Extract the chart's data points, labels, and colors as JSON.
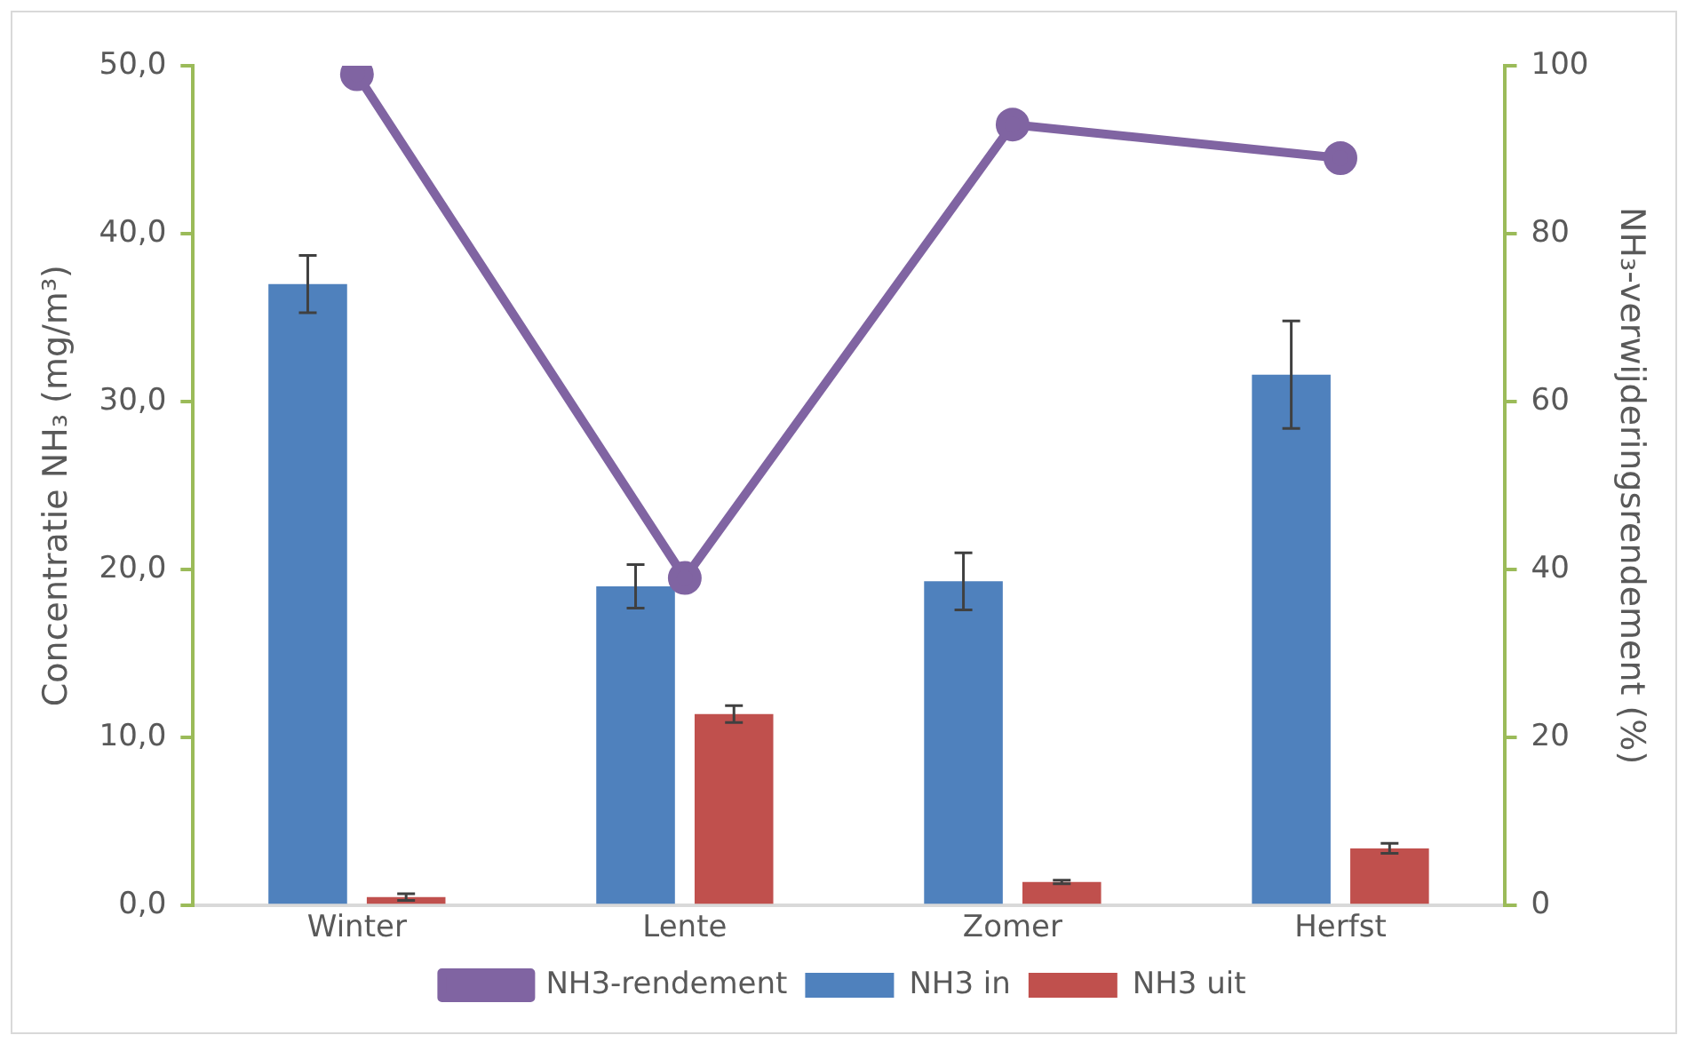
{
  "chart_data": {
    "type": "bar",
    "ylabel": "Concentratie NH₃ (mg/m³)",
    "y2label": "NH₃-verwijderingsrendement (%)",
    "categories": [
      "Winter",
      "Lente",
      "Zomer",
      "Herfst"
    ],
    "series": [
      {
        "name": "NH3 in",
        "color": "#4f81bd",
        "values": [
          37.0,
          19.0,
          19.3,
          31.6
        ],
        "errors": [
          1.7,
          1.3,
          1.7,
          3.2
        ]
      },
      {
        "name": "NH3 uit",
        "color": "#c0504d",
        "values": [
          0.5,
          11.4,
          1.4,
          3.4
        ],
        "errors": [
          0.2,
          0.5,
          0.1,
          0.3
        ]
      },
      {
        "name": "NH3-rendement",
        "type": "line",
        "axis": "y2",
        "color": "#8064a2",
        "values": [
          99,
          39,
          93,
          89
        ]
      }
    ],
    "ylim": [
      0,
      50
    ],
    "yticks": [
      {
        "value": 0,
        "label": "0,0"
      },
      {
        "value": 10,
        "label": "10,0"
      },
      {
        "value": 20,
        "label": "20,0"
      },
      {
        "value": 30,
        "label": "30,0"
      },
      {
        "value": 40,
        "label": "40,0"
      },
      {
        "value": 50,
        "label": "50,0"
      }
    ],
    "y2lim": [
      0,
      100
    ],
    "y2ticks": [
      0,
      20,
      40,
      60,
      80,
      100
    ],
    "grid": false,
    "legend": "bottom",
    "marker": "circle",
    "line_style": "solid"
  }
}
